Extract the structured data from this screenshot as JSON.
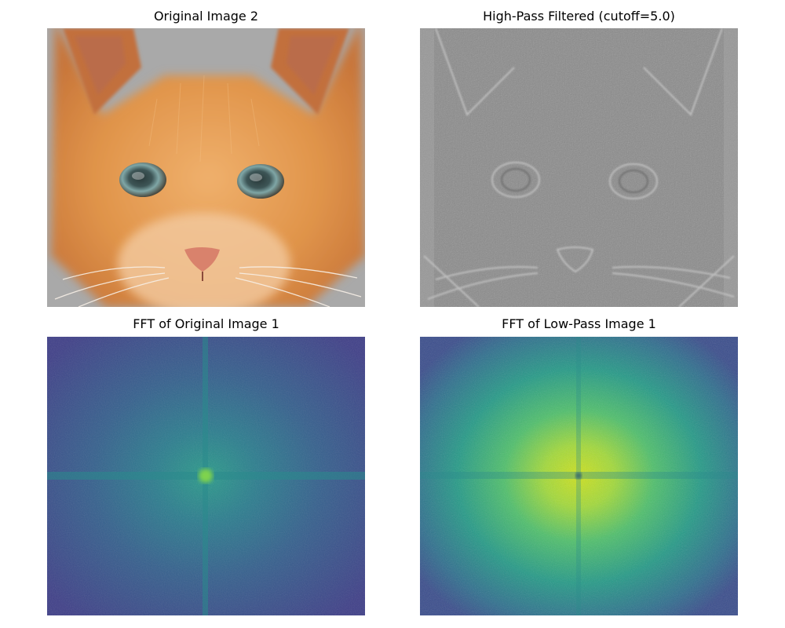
{
  "figure": {
    "panels": [
      {
        "title": "Original Image 2",
        "kind": "photo",
        "subject": "orange kitten face, color photograph"
      },
      {
        "title": "High-Pass Filtered (cutoff=5.0)",
        "kind": "highpass",
        "subject": "gray edge-detail rendering of kitten face"
      },
      {
        "title": "FFT of Original Image 1",
        "kind": "fft",
        "colormap": "viridis"
      },
      {
        "title": "FFT of Low-Pass Image 1",
        "kind": "fft-bright",
        "colormap": "viridis"
      }
    ]
  },
  "colors": {
    "fur": "#e0944a",
    "fur_light": "#f0b878",
    "backdrop": "#a9a9a9",
    "gray_mid": "#8a8a8a",
    "viridis_dark": "#3b3f8a",
    "viridis_mid": "#21908c",
    "viridis_bright": "#b5de2b"
  }
}
